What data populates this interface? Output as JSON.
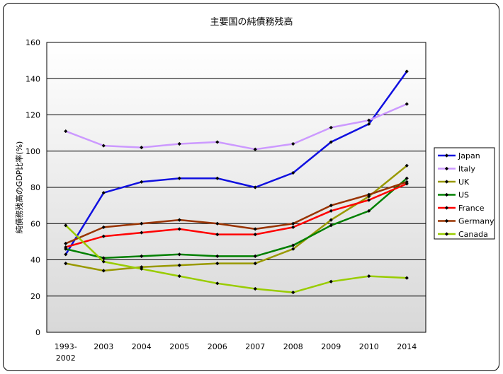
{
  "chart_data": {
    "type": "line",
    "title": "主要国の純債務残高",
    "xlabel": "",
    "ylabel": "純債務残高のGDP比率(%)",
    "ylim": [
      0,
      160
    ],
    "yticks": [
      0,
      20,
      40,
      60,
      80,
      100,
      120,
      140,
      160
    ],
    "categories": [
      "1993-\n2002",
      "2003",
      "2004",
      "2005",
      "2006",
      "2007",
      "2008",
      "2009",
      "2010",
      "2014"
    ],
    "legend_position": "right",
    "grid": true,
    "series": [
      {
        "name": "Japan",
        "color": "#1010e0",
        "values": [
          43,
          77,
          83,
          85,
          85,
          80,
          88,
          105,
          115,
          144
        ]
      },
      {
        "name": "Italy",
        "color": "#cc99ff",
        "values": [
          111,
          103,
          102,
          104,
          105,
          101,
          104,
          113,
          117,
          126
        ]
      },
      {
        "name": "UK",
        "color": "#999900",
        "values": [
          38,
          34,
          36,
          37,
          38,
          38,
          46,
          62,
          75,
          92
        ]
      },
      {
        "name": "US",
        "color": "#008000",
        "values": [
          46,
          41,
          42,
          43,
          42,
          42,
          48,
          59,
          67,
          85
        ]
      },
      {
        "name": "France",
        "color": "#ff0000",
        "values": [
          47,
          53,
          55,
          57,
          54,
          54,
          58,
          67,
          73,
          82
        ]
      },
      {
        "name": "Germany",
        "color": "#993300",
        "values": [
          49,
          58,
          60,
          62,
          60,
          57,
          60,
          70,
          76,
          83
        ]
      },
      {
        "name": "Canada",
        "color": "#99cc00",
        "values": [
          59,
          39,
          35,
          31,
          27,
          24,
          22,
          28,
          31,
          30
        ]
      }
    ]
  }
}
